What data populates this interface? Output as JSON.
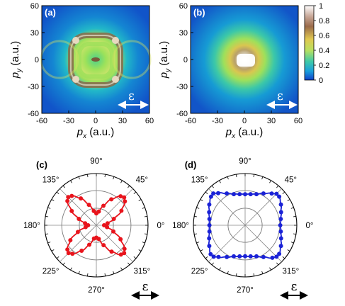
{
  "chart_data": [
    {
      "panel": "(a)",
      "type": "heatmap",
      "xlabel_sym": "p",
      "xlabel_sub": "x",
      "xlabel_unit": " (a.u.)",
      "ylabel_sym": "p",
      "ylabel_sub": "y",
      "ylabel_unit": " (a.u.)",
      "xlim": [
        -60,
        60
      ],
      "ylim": [
        -60,
        60
      ],
      "xticks": [
        "-60",
        "-30",
        "0",
        "30",
        "60"
      ],
      "yticks": [
        "60",
        "30",
        "0",
        "-30",
        "-60"
      ],
      "polarization_label": "ε",
      "pattern": "four-lobed ring at radius ~20 a.u. with bright spots near (±25, ±20)"
    },
    {
      "panel": "(b)",
      "type": "heatmap",
      "xlabel_sym": "p",
      "xlabel_sub": "x",
      "xlabel_unit": " (a.u.)",
      "ylabel_sym": "p",
      "ylabel_sub": "y",
      "ylabel_unit": " (a.u.)",
      "xlim": [
        -60,
        60
      ],
      "ylim": [
        -60,
        60
      ],
      "xticks": [
        "-60",
        "-30",
        "0",
        "30",
        "60"
      ],
      "yticks": [
        "60",
        "30",
        "0",
        "-30",
        "-60"
      ],
      "polarization_label": "ε",
      "colorbar_ticks": [
        "1",
        "0.8",
        "0.6",
        "0.4",
        "0.2",
        "0"
      ],
      "pattern": "broad distribution with maximum at center"
    },
    {
      "panel": "(c)",
      "type": "scatter",
      "projection": "polar",
      "angle_labels": [
        "0°",
        "45°",
        "90°",
        "135°",
        "180°",
        "225°",
        "270°",
        "315°"
      ],
      "color": "#e8141c",
      "polarization_label": "ε",
      "points_deg": [
        0,
        10,
        20,
        30,
        40,
        45,
        50,
        60,
        70,
        80,
        90,
        100,
        110,
        120,
        130,
        135,
        140,
        150,
        160,
        170,
        180,
        190,
        200,
        210,
        220,
        225,
        230,
        240,
        250,
        260,
        270,
        280,
        290,
        300,
        310,
        315,
        320,
        330,
        340,
        350
      ],
      "points_r": [
        0.15,
        0.22,
        0.36,
        0.56,
        0.72,
        0.76,
        0.73,
        0.58,
        0.4,
        0.27,
        0.23,
        0.28,
        0.42,
        0.6,
        0.74,
        0.77,
        0.73,
        0.55,
        0.36,
        0.22,
        0.16,
        0.21,
        0.38,
        0.58,
        0.73,
        0.76,
        0.72,
        0.57,
        0.4,
        0.26,
        0.24,
        0.27,
        0.41,
        0.59,
        0.74,
        0.76,
        0.71,
        0.54,
        0.35,
        0.21
      ]
    },
    {
      "panel": "(d)",
      "type": "scatter",
      "projection": "polar",
      "angle_labels": [
        "0°",
        "45°",
        "90°",
        "135°",
        "180°",
        "225°",
        "270°",
        "315°"
      ],
      "color": "#1a22d6",
      "polarization_label": "ε",
      "points_deg": [
        0,
        10,
        20,
        30,
        40,
        45,
        50,
        60,
        70,
        80,
        90,
        100,
        110,
        120,
        130,
        135,
        140,
        150,
        160,
        170,
        180,
        190,
        200,
        210,
        220,
        225,
        230,
        240,
        250,
        260,
        270,
        280,
        290,
        300,
        310,
        315,
        320,
        330,
        340,
        350
      ],
      "points_r": [
        0.68,
        0.7,
        0.74,
        0.8,
        0.86,
        0.86,
        0.8,
        0.71,
        0.64,
        0.61,
        0.6,
        0.61,
        0.64,
        0.71,
        0.81,
        0.87,
        0.86,
        0.8,
        0.74,
        0.7,
        0.69,
        0.7,
        0.74,
        0.8,
        0.87,
        0.86,
        0.8,
        0.71,
        0.64,
        0.61,
        0.6,
        0.61,
        0.64,
        0.71,
        0.82,
        0.86,
        0.86,
        0.8,
        0.74,
        0.7
      ]
    }
  ]
}
